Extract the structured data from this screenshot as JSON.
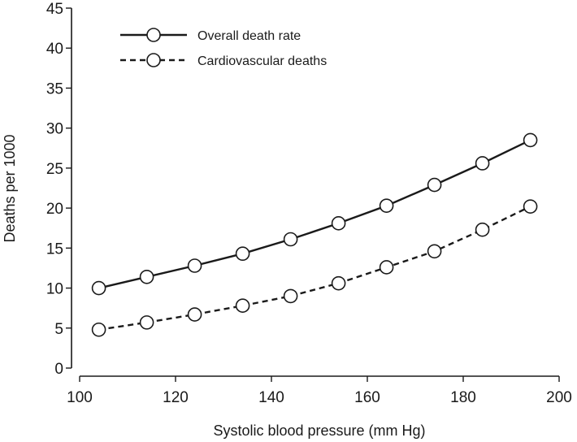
{
  "chart_data": {
    "type": "line",
    "xlabel": "Systolic blood pressure (mm Hg)",
    "ylabel": "Deaths per 1000",
    "xlim": [
      100,
      200
    ],
    "ylim": [
      0,
      45
    ],
    "x_ticks": [
      100,
      120,
      140,
      160,
      180,
      200
    ],
    "y_ticks": [
      0,
      5,
      10,
      15,
      20,
      25,
      30,
      35,
      40,
      45
    ],
    "grid": false,
    "legend_position": "top-left",
    "x": [
      104,
      114,
      124,
      134,
      144,
      154,
      164,
      174,
      184,
      194
    ],
    "series": [
      {
        "name": "Overall death rate",
        "style": "solid",
        "values": [
          10.0,
          11.4,
          12.8,
          14.3,
          16.1,
          18.1,
          20.3,
          22.9,
          25.6,
          28.5
        ]
      },
      {
        "name": "Cardiovascular deaths",
        "style": "dashed",
        "values": [
          4.8,
          5.7,
          6.7,
          7.8,
          9.0,
          10.6,
          12.6,
          14.6,
          17.3,
          20.2
        ]
      }
    ]
  }
}
